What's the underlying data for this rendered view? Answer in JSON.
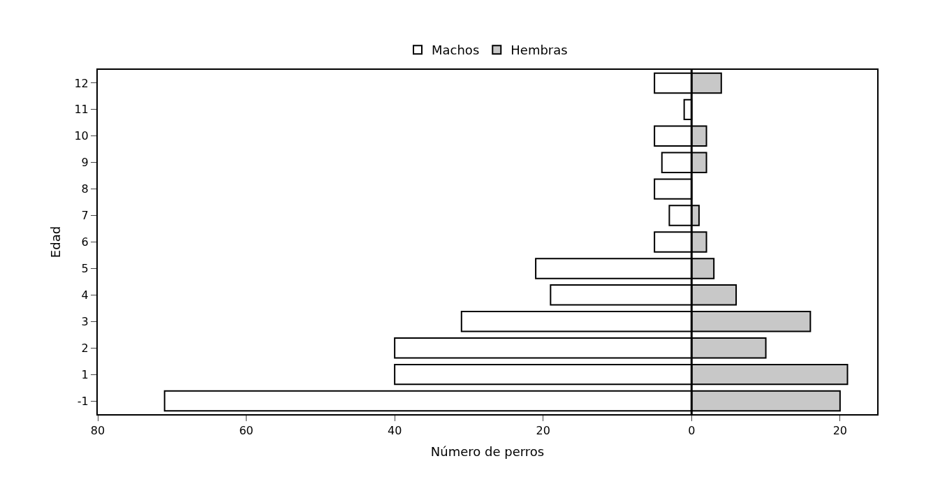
{
  "chart_data": {
    "type": "bar",
    "orientation": "horizontal",
    "xlabel": "Número de perros",
    "ylabel": "Edad",
    "categories": [
      "12",
      "11",
      "10",
      "9",
      "8",
      "7",
      "6",
      "5",
      "4",
      "3",
      "2",
      "1",
      "-1"
    ],
    "series": [
      {
        "name": "Machos",
        "color": "#ffffff",
        "values": [
          -5,
          -1,
          -5,
          -4,
          -5,
          -3,
          -5,
          -21,
          -19,
          -31,
          -40,
          -40,
          -71
        ]
      },
      {
        "name": "Hembras",
        "color": "#c8c8c8",
        "values": [
          4,
          0,
          2,
          2,
          0,
          1,
          2,
          3,
          6,
          16,
          10,
          21,
          20
        ]
      }
    ],
    "xlim": [
      -80,
      25
    ],
    "xticks": [
      {
        "value": -80,
        "label": "80"
      },
      {
        "value": -60,
        "label": "60"
      },
      {
        "value": -40,
        "label": "40"
      },
      {
        "value": -20,
        "label": "20"
      },
      0,
      20
    ],
    "ref_lines": [
      {
        "axis": "x",
        "value": 0,
        "color": "#000000"
      }
    ],
    "stacked": true,
    "grid": false,
    "legend": "top"
  }
}
